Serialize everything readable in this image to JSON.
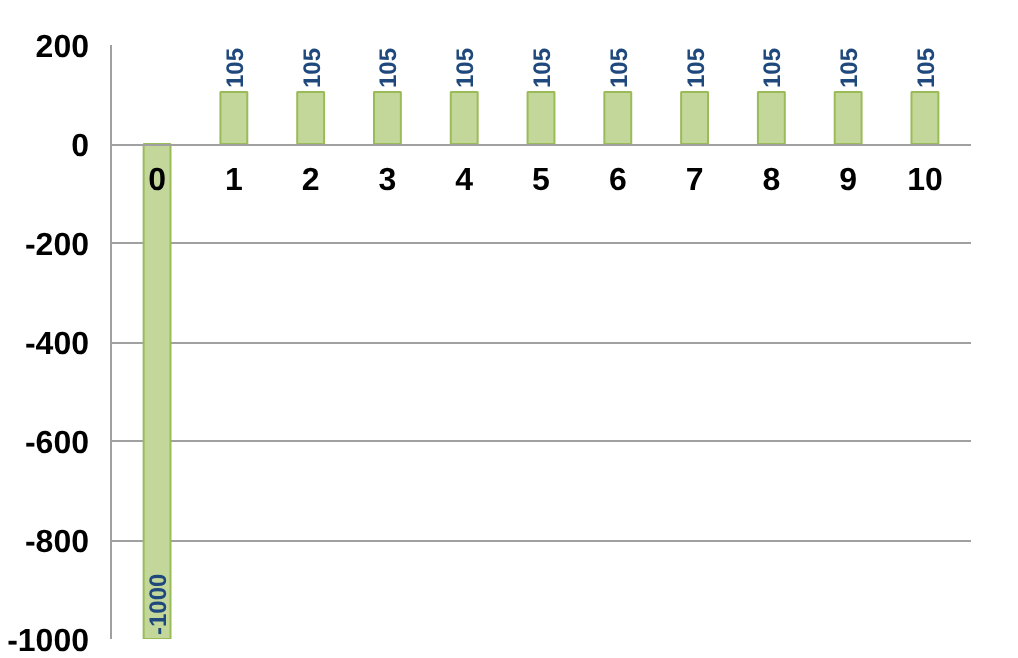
{
  "chart_data": {
    "type": "bar",
    "categories": [
      "0",
      "1",
      "2",
      "3",
      "4",
      "5",
      "6",
      "7",
      "8",
      "9",
      "10"
    ],
    "values": [
      -1000,
      105,
      105,
      105,
      105,
      105,
      105,
      105,
      105,
      105,
      105
    ],
    "color": "#c4d79b",
    "ylim": [
      -1000,
      200
    ],
    "yticks": [
      -1000,
      -800,
      -600,
      -400,
      -200,
      0,
      200
    ],
    "grid": "y",
    "data_labels": true
  }
}
